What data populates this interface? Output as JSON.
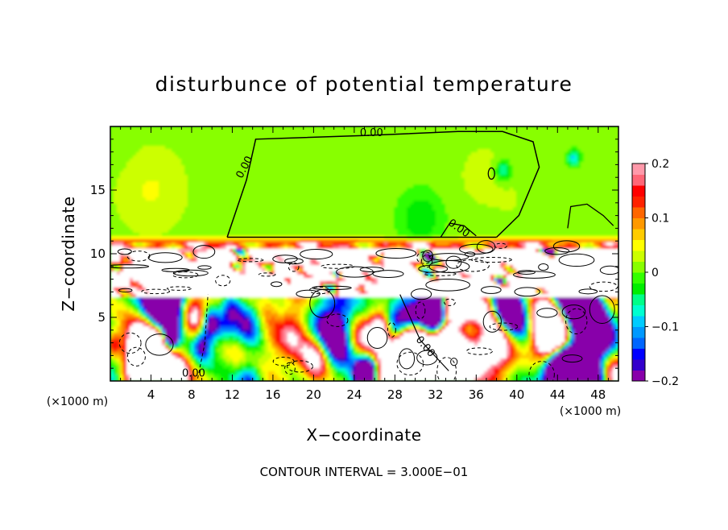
{
  "chart_data": {
    "type": "heatmap",
    "title": "disturbunce of potential temperature",
    "xlabel": "X−coordinate",
    "ylabel": "Z−coordinate",
    "x_unit": "(×1000 m)",
    "z_unit": "(×1000 m)",
    "xlim": [
      0,
      50
    ],
    "ylim": [
      0,
      20
    ],
    "x_ticks": [
      4,
      8,
      12,
      16,
      20,
      24,
      28,
      32,
      36,
      40,
      44,
      48
    ],
    "x_tick_labels": [
      "4",
      "8",
      "12",
      "16",
      "20",
      "24",
      "28",
      "32",
      "36",
      "40",
      "44",
      "48"
    ],
    "y_ticks": [
      5,
      10,
      15
    ],
    "y_tick_labels": [
      "5",
      "10",
      "15"
    ],
    "colorbar": {
      "range": [
        -0.2,
        0.2
      ],
      "ticks": [
        0.2,
        0.1,
        0,
        -0.1,
        -0.2
      ],
      "tick_labels": [
        "0.2",
        "0.1",
        "0",
        "−0.1",
        "−0.2"
      ],
      "colors": [
        "#8800aa",
        "#3300cc",
        "#0000ff",
        "#0066ff",
        "#0099ff",
        "#00ccff",
        "#00ffd0",
        "#00ff88",
        "#00ee00",
        "#33ff00",
        "#88ff00",
        "#ccff00",
        "#ffff00",
        "#ffcc00",
        "#ff9900",
        "#ff6600",
        "#ff2200",
        "#ff0000",
        "#ff6677",
        "#ff99aa"
      ]
    },
    "contour_labels": [
      {
        "text": "0.00",
        "x": 25.7,
        "z": 19.5
      },
      {
        "text": "0.00",
        "x": 13.2,
        "z": 16.8
      },
      {
        "text": "0.00",
        "x": 34.3,
        "z": 12.0
      },
      {
        "text": "0.00",
        "x": 8.2,
        "z": 0.6
      },
      {
        "text": "0.00",
        "x": 31.0,
        "z": 2.7
      }
    ],
    "footer": "CONTOUR INTERVAL = 3.000E−01"
  }
}
